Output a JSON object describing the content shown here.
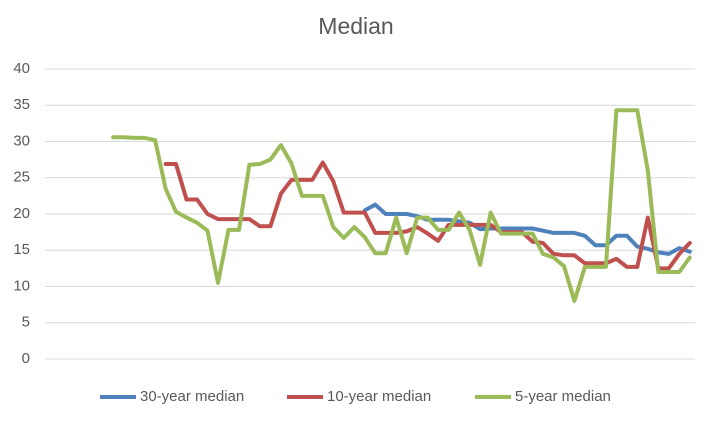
{
  "chart_data": {
    "type": "line",
    "title": "Median",
    "categories": [
      null,
      null,
      null,
      null,
      null,
      null,
      null,
      null,
      null,
      null,
      null,
      null,
      null,
      null,
      null,
      null,
      null,
      null,
      null,
      null,
      null,
      null,
      null,
      null,
      null,
      null,
      null,
      null,
      null,
      null,
      null,
      null,
      null,
      null,
      null,
      null,
      null,
      null,
      null,
      null,
      null,
      null,
      null,
      null,
      null,
      null,
      null,
      null,
      null,
      null,
      null,
      null,
      null,
      null,
      null,
      null,
      null,
      null,
      null,
      null,
      null,
      null
    ],
    "series": [
      {
        "name": "30-year median",
        "color": "#4f81bd",
        "values": [
          null,
          null,
          null,
          null,
          null,
          null,
          null,
          null,
          null,
          null,
          null,
          null,
          null,
          null,
          null,
          null,
          null,
          null,
          null,
          null,
          null,
          null,
          null,
          null,
          null,
          null,
          null,
          null,
          null,
          null,
          20.5,
          21.3,
          20,
          20,
          20,
          19.7,
          19.2,
          19.2,
          19.2,
          19,
          18.8,
          17.9,
          18,
          18,
          18,
          18,
          18,
          17.7,
          17.4,
          17.4,
          17.4,
          17,
          15.7,
          15.7,
          17,
          17,
          15.5,
          15.2,
          14.7,
          14.5,
          15.3,
          14.8
        ]
      },
      {
        "name": "10-year median",
        "color": "#c0504d",
        "values": [
          null,
          null,
          null,
          null,
          null,
          null,
          null,
          null,
          null,
          null,
          null,
          26.9,
          26.9,
          22,
          22,
          20,
          19.3,
          19.3,
          19.3,
          19.3,
          18.3,
          18.3,
          22.8,
          24.7,
          24.7,
          24.7,
          27.1,
          24.5,
          20.2,
          20.2,
          20.2,
          17.4,
          17.4,
          17.4,
          17.6,
          18.2,
          17.3,
          16.3,
          18.5,
          18.5,
          18.5,
          18.5,
          18.5,
          17.5,
          17.5,
          17.5,
          16.2,
          16,
          14.5,
          14.3,
          14.3,
          13.2,
          13.2,
          13.2,
          13.8,
          12.7,
          12.7,
          19.5,
          12.5,
          12.5,
          14.5,
          16
        ]
      },
      {
        "name": "5-year median",
        "color": "#9bbb59",
        "values": [
          null,
          null,
          null,
          null,
          null,
          null,
          30.6,
          30.6,
          30.5,
          30.5,
          30.2,
          23.5,
          20.3,
          19.5,
          18.8,
          17.7,
          10.5,
          17.8,
          17.8,
          26.8,
          26.9,
          27.5,
          29.5,
          27,
          22.5,
          22.5,
          22.5,
          18.2,
          16.7,
          18.2,
          16.8,
          14.6,
          14.6,
          19.5,
          14.6,
          19.5,
          19.5,
          17.8,
          17.8,
          20.2,
          17.8,
          13,
          20.2,
          17.3,
          17.3,
          17.3,
          17.3,
          14.5,
          14,
          12.8,
          8,
          12.7,
          12.7,
          12.7,
          34.3,
          34.3,
          34.3,
          26,
          12,
          12,
          12,
          14
        ]
      }
    ],
    "ylim": [
      0,
      40
    ],
    "yticks": [
      0,
      5,
      10,
      15,
      20,
      25,
      30,
      35,
      40
    ],
    "grid": true,
    "legend": "bottom"
  }
}
